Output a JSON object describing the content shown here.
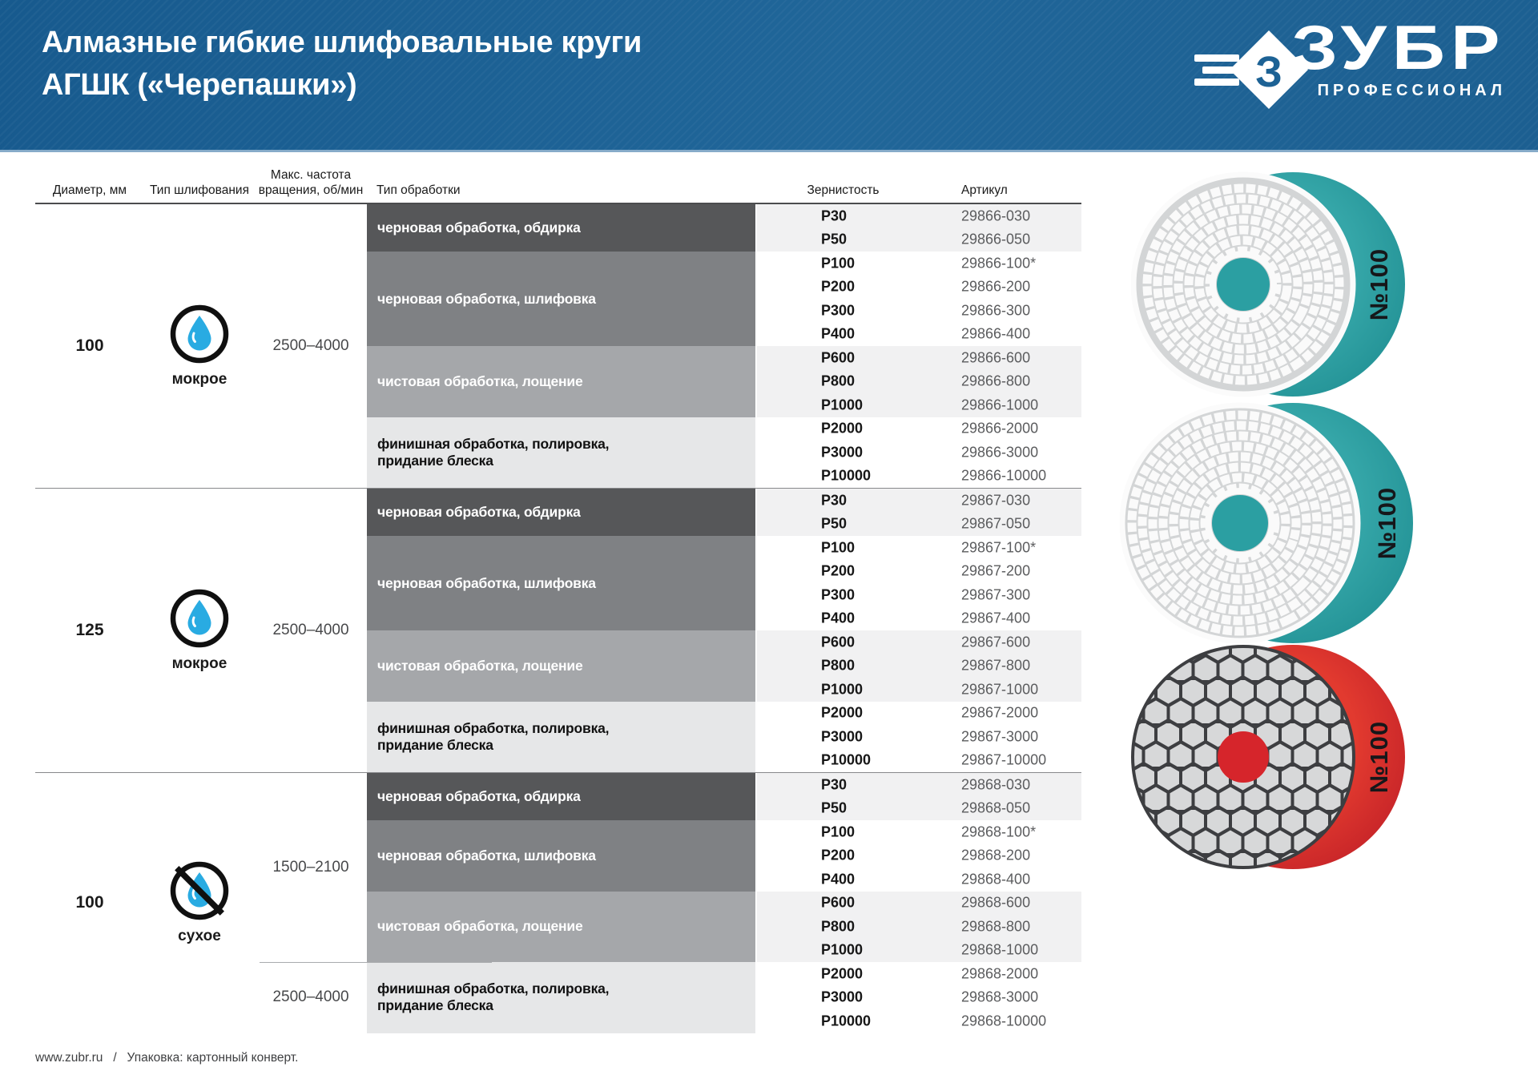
{
  "header": {
    "title_line1": "Алмазные гибкие шлифовальные круги",
    "title_line2": "АГШК («Черепашки»)"
  },
  "brand": {
    "name": "ЗУБР",
    "sub": "ПРОФЕССИОНАЛ",
    "logo_icon": "zubr-diamond-arrow-icon",
    "blue": "#1d6295"
  },
  "table": {
    "headers": {
      "diameter": "Диаметр, мм",
      "grinding": "Тип шлифования",
      "rpm_line1": "Макс. частота",
      "rpm_line2": "вращения, об/мин",
      "processing": "Тип обработки",
      "grit": "Зернистость",
      "article": "Артикул"
    },
    "groups": [
      {
        "diameter": "100",
        "grinding": "мокрое",
        "icon": "wet",
        "rpm": [
          {
            "value": "2500–4000",
            "rows": 12
          }
        ],
        "blocks": [
          {
            "label": "черновая обработка, обдирка",
            "rows": [
              [
                "P30",
                "29866-030"
              ],
              [
                "P50",
                "29866-050"
              ]
            ]
          },
          {
            "label": "черновая обработка, шлифовка",
            "rows": [
              [
                "P100",
                "29866-100*"
              ],
              [
                "P200",
                "29866-200"
              ],
              [
                "P300",
                "29866-300"
              ],
              [
                "P400",
                "29866-400"
              ]
            ]
          },
          {
            "label": "чистовая обработка, лощение",
            "rows": [
              [
                "P600",
                "29866-600"
              ],
              [
                "P800",
                "29866-800"
              ],
              [
                "P1000",
                "29866-1000"
              ]
            ]
          },
          {
            "label": "финишная обработка, полировка, придание блеска",
            "rows": [
              [
                "P2000",
                "29866-2000"
              ],
              [
                "P3000",
                "29866-3000"
              ],
              [
                "P10000",
                "29866-10000"
              ]
            ]
          }
        ]
      },
      {
        "diameter": "125",
        "grinding": "мокрое",
        "icon": "wet",
        "rpm": [
          {
            "value": "2500–4000",
            "rows": 12
          }
        ],
        "blocks": [
          {
            "label": "черновая обработка, обдирка",
            "rows": [
              [
                "P30",
                "29867-030"
              ],
              [
                "P50",
                "29867-050"
              ]
            ]
          },
          {
            "label": "черновая обработка, шлифовка",
            "rows": [
              [
                "P100",
                "29867-100*"
              ],
              [
                "P200",
                "29867-200"
              ],
              [
                "P300",
                "29867-300"
              ],
              [
                "P400",
                "29867-400"
              ]
            ]
          },
          {
            "label": "чистовая обработка, лощение",
            "rows": [
              [
                "P600",
                "29867-600"
              ],
              [
                "P800",
                "29867-800"
              ],
              [
                "P1000",
                "29867-1000"
              ]
            ]
          },
          {
            "label": "финишная обработка, полировка, придание блеска",
            "rows": [
              [
                "P2000",
                "29867-2000"
              ],
              [
                "P3000",
                "29867-3000"
              ],
              [
                "P10000",
                "29867-10000"
              ]
            ]
          }
        ]
      },
      {
        "diameter": "100",
        "grinding": "сухое",
        "icon": "dry",
        "rpm": [
          {
            "value": "1500–2100",
            "rows": 8
          },
          {
            "value": "2500–4000",
            "rows": 3
          }
        ],
        "blocks": [
          {
            "label": "черновая обработка, обдирка",
            "rows": [
              [
                "P30",
                "29868-030"
              ],
              [
                "P50",
                "29868-050"
              ]
            ]
          },
          {
            "label": "черновая обработка, шлифовка",
            "rows": [
              [
                "P100",
                "29868-100*"
              ],
              [
                "P200",
                "29868-200"
              ],
              [
                "P400",
                "29868-400"
              ]
            ]
          },
          {
            "label": "чистовая обработка, лощение",
            "rows": [
              [
                "P600",
                "29868-600"
              ],
              [
                "P800",
                "29868-800"
              ],
              [
                "P1000",
                "29868-1000"
              ]
            ]
          },
          {
            "label": "финишная обработка, полировка, придание блеска",
            "rows": [
              [
                "P2000",
                "29868-2000"
              ],
              [
                "P3000",
                "29868-3000"
              ],
              [
                "P10000",
                "29868-10000"
              ]
            ]
          }
        ]
      }
    ]
  },
  "icons": {
    "wet": "water-drop-icon",
    "dry": "no-water-drop-icon",
    "drop_color": "#29abe2"
  },
  "discs": [
    {
      "style": "wet-spiral",
      "badge": "№100",
      "backing": [
        "#35a6a8",
        "#1f8e92"
      ],
      "hole": "#2b9fa2"
    },
    {
      "style": "wet-spiral",
      "badge": "№100",
      "backing": [
        "#35a6a8",
        "#1f8e92"
      ],
      "hole": "#2b9fa2"
    },
    {
      "style": "dry-hex",
      "badge": "№100",
      "backing": [
        "#e23a2f",
        "#c01f27"
      ],
      "hole": "#d6252b"
    }
  ],
  "footer": {
    "text": "www.zubr.ru   /   Упаковка: картонный конверт."
  }
}
